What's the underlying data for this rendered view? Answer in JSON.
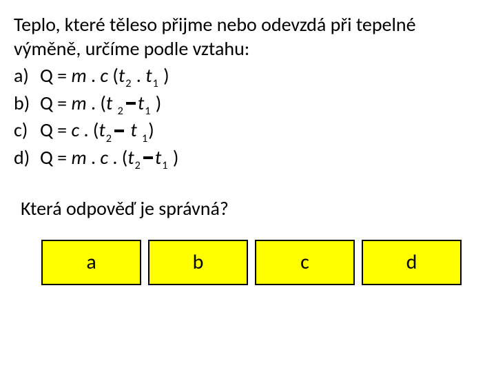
{
  "question": "Teplo, které těleso přijme nebo odevzdá při tepelné výměně, určíme podle vztahu:",
  "options": {
    "a": {
      "label": "a)"
    },
    "b": {
      "label": "b)"
    },
    "c": {
      "label": "c)"
    },
    "d": {
      "label": "d)"
    }
  },
  "formula_parts": {
    "Q_eq": "Q = ",
    "m": "m",
    "c": "c",
    "t": "t",
    "dot": " . ",
    "open": "(",
    "close": ")",
    "closespace": " )",
    "sub1": "1",
    "sub2": "2"
  },
  "prompt": "Která odpověď je správná?",
  "answers": {
    "a": "a",
    "b": "b",
    "c": "c",
    "d": "d"
  },
  "colors": {
    "button_bg": "#ffff00",
    "button_border": "#000000",
    "background": "#ffffff",
    "text": "#000000"
  },
  "typography": {
    "body_fontsize": 28,
    "button_fontsize": 30
  }
}
